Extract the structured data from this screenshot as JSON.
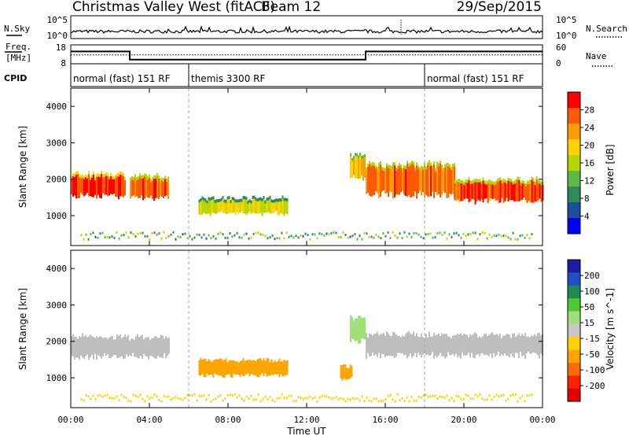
{
  "header": {
    "station": "Christmas Valley West (fitACF)",
    "beam": "Beam 12",
    "date": "29/Sep/2015"
  },
  "sky_panel": {
    "left_label": "N.Sky",
    "left_ticks": [
      "10^5",
      "10^0"
    ],
    "right_ticks": [
      "10^5",
      "10^0"
    ],
    "right_label": "N.Search"
  },
  "freq_panel": {
    "left_label_line1": "Freq.",
    "left_label_line2": "[MHz]",
    "left_ticks": [
      "18",
      "8"
    ],
    "right_ticks": [
      "60",
      "0"
    ],
    "right_label": "Nave"
  },
  "cpid_panel": {
    "label": "CPID",
    "segments": [
      {
        "text": "normal (fast) 151 RF",
        "start_hour": 0
      },
      {
        "text": "themis 3300 RF",
        "start_hour": 6
      },
      {
        "text": "normal (fast) 151 RF",
        "start_hour": 18
      }
    ]
  },
  "power_panel": {
    "ylabel": "Slant Range [km]",
    "yticks": [
      "4000",
      "3000",
      "2000",
      "1000"
    ],
    "colorbar_label": "Power [dB]",
    "colorbar_ticks": [
      "28",
      "24",
      "20",
      "16",
      "12",
      "8",
      "4"
    ],
    "colorbar_colors": [
      "#ff0000",
      "#ff5a00",
      "#ff9c00",
      "#ffd200",
      "#b4d700",
      "#5eb848",
      "#2e8a5c",
      "#1b4fa0",
      "#0000ff"
    ]
  },
  "velocity_panel": {
    "ylabel": "Slant Range [km]",
    "yticks": [
      "4000",
      "3000",
      "2000",
      "1000"
    ],
    "colorbar_label": "Velocity [m s^-1]",
    "colorbar_ticks": [
      "200",
      "100",
      "50",
      "15",
      "-15",
      "-50",
      "-100",
      "-200"
    ],
    "colorbar_colors": [
      "#1c1ca8",
      "#2050c8",
      "#1e8c50",
      "#50c832",
      "#a0e078",
      "#c8c8c8",
      "#ffd200",
      "#ffa500",
      "#ff6a00",
      "#ff2000",
      "#e00000"
    ],
    "ground_scatter_color": "#bebebe"
  },
  "xaxis": {
    "label": "Time UT",
    "ticks": [
      "00:00",
      "04:00",
      "08:00",
      "12:00",
      "16:00",
      "20:00",
      "00:00"
    ]
  },
  "chart_data": {
    "type": "heatmap",
    "title": "Christmas Valley West (fitACF)",
    "subtitle": "Beam 12",
    "date": "29/Sep/2015",
    "x_range_hours": [
      0,
      24
    ],
    "x_ticks": [
      "00:00",
      "04:00",
      "08:00",
      "12:00",
      "16:00",
      "20:00",
      "00:00"
    ],
    "xlabel": "Time UT",
    "ylabel": "Slant Range [km]",
    "ylim_km": [
      180,
      4500
    ],
    "y_ticks_km": [
      1000,
      2000,
      3000,
      4000
    ],
    "transmit_frequency": {
      "ylabel": "Freq. [MHz]",
      "ylim": [
        8,
        18
      ],
      "steps": [
        {
          "from_hour": 0,
          "to_hour": 3,
          "mhz": 14.5
        },
        {
          "from_hour": 3,
          "to_hour": 15,
          "mhz": 10.2
        },
        {
          "from_hour": 15,
          "to_hour": 24,
          "mhz": 14.5
        }
      ],
      "nave_level": 28,
      "nave_range": [
        0,
        60
      ]
    },
    "cpid_changes_hour": [
      6,
      18
    ],
    "power": {
      "label": "Power [dB]",
      "range_db": [
        0,
        30
      ],
      "scatter": [
        {
          "from_hour": 0,
          "to_hour": 2.8,
          "center_km": 1800,
          "width_km": 560,
          "db": 27
        },
        {
          "from_hour": 3,
          "to_hour": 5,
          "center_km": 1750,
          "width_km": 520,
          "db": 25
        },
        {
          "from_hour": 6.5,
          "to_hour": 11,
          "center_km": 1230,
          "width_km": 360,
          "db": 17
        },
        {
          "from_hour": 14.2,
          "to_hour": 15,
          "center_km": 2300,
          "width_km": 600,
          "db": 20
        },
        {
          "from_hour": 15,
          "to_hour": 19.5,
          "center_km": 1950,
          "width_km": 780,
          "db": 24
        },
        {
          "from_hour": 19.5,
          "to_hour": 24,
          "center_km": 1650,
          "width_km": 520,
          "db": 26
        }
      ]
    },
    "velocity": {
      "label": "Velocity [m s^-1]",
      "range_ms": [
        -200,
        200
      ],
      "scatter": [
        {
          "from_hour": 0,
          "to_hour": 5,
          "center_km": 1850,
          "width_km": 560,
          "ms": 0,
          "ground": true
        },
        {
          "from_hour": 6.5,
          "to_hour": 11,
          "center_km": 1230,
          "width_km": 360,
          "ms": -60
        },
        {
          "from_hour": 13.7,
          "to_hour": 14.3,
          "center_km": 1100,
          "width_km": 300,
          "ms": -60
        },
        {
          "from_hour": 14.2,
          "to_hour": 15,
          "center_km": 2300,
          "width_km": 600,
          "ms": 30
        },
        {
          "from_hour": 15,
          "to_hour": 24,
          "center_km": 1900,
          "width_km": 600,
          "ms": 0,
          "ground": true
        }
      ]
    }
  }
}
